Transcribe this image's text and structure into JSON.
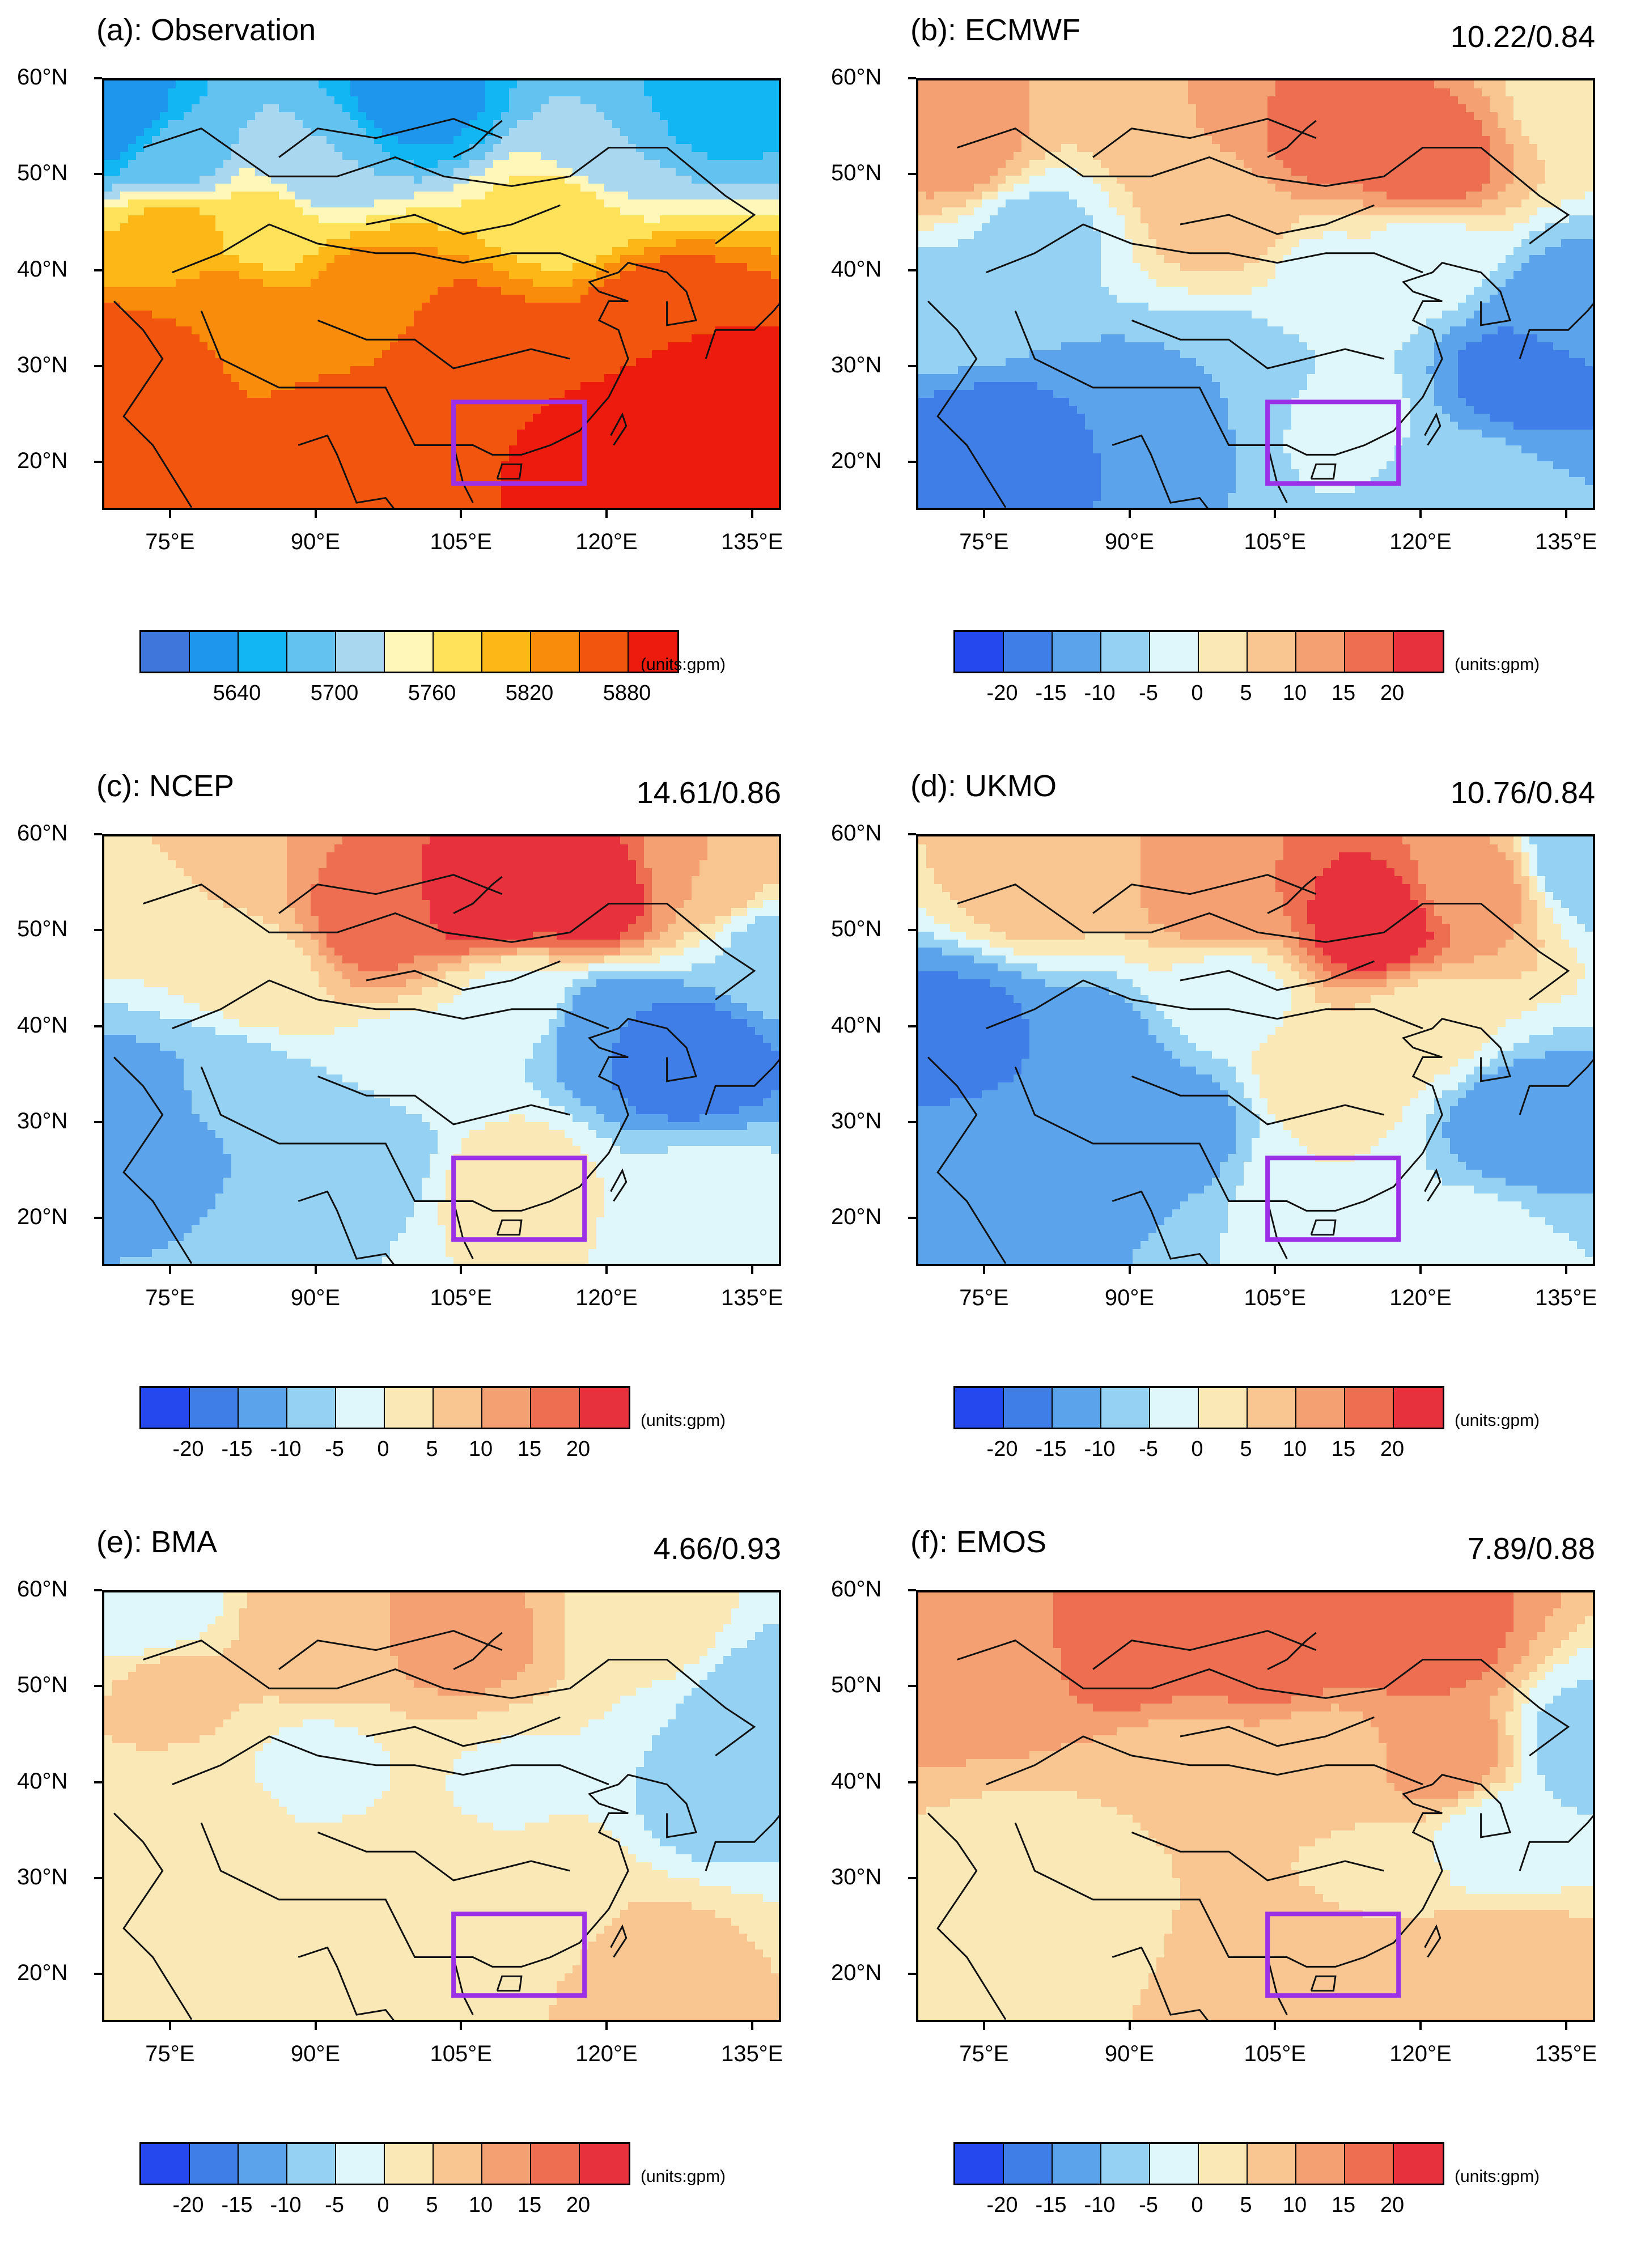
{
  "colors": {
    "obs": [
      "#3f76dc",
      "#1f96ee",
      "#12b6f2",
      "#63c2f0",
      "#a9d7ef",
      "#fff7ba",
      "#ffe25a",
      "#fdb717",
      "#f98c0b",
      "#f2560e",
      "#ec1b0e"
    ],
    "diff": [
      "#2448ee",
      "#3f7ee6",
      "#5ba3ea",
      "#94d1f2",
      "#dff6fb",
      "#fbe8b7",
      "#f9c692",
      "#f5a073",
      "#ee6e52",
      "#e7313c"
    ]
  },
  "chart_data": [
    {
      "type": "heatmap",
      "title": "(a): Observation",
      "stat": "",
      "xlim": [
        68,
        138
      ],
      "ylim": [
        15,
        60
      ],
      "xticks": [
        "75°E",
        "90°E",
        "105°E",
        "120°E",
        "135°E"
      ],
      "yticks": [
        "60°N",
        "50°N",
        "40°N",
        "30°N",
        "20°N"
      ],
      "colorbar_labels": [
        "5640",
        "5700",
        "5760",
        "5820",
        "5880"
      ],
      "units": "(units:gpm)",
      "palette": "obs",
      "region_box": {
        "lon": [
          104,
          117.5
        ],
        "lat": [
          18,
          26.5
        ]
      },
      "field": [
        {
          "lon": 69,
          "lat": 56,
          "v": 0.5
        },
        {
          "lon": 100,
          "lat": 58,
          "v": 1.0
        },
        {
          "lon": 130,
          "lat": 58,
          "v": 2.0
        },
        {
          "lon": 120,
          "lat": 53,
          "v": 3.5
        },
        {
          "lon": 90,
          "lat": 51,
          "v": 3.5
        },
        {
          "lon": 75,
          "lat": 52,
          "v": 3.0
        },
        {
          "lon": 85,
          "lat": 45,
          "v": 6.0
        },
        {
          "lon": 115,
          "lat": 46,
          "v": 6.0
        },
        {
          "lon": 75,
          "lat": 44,
          "v": 7.0
        },
        {
          "lon": 95,
          "lat": 38,
          "v": 8.0
        },
        {
          "lon": 80,
          "lat": 35,
          "v": 8.5
        },
        {
          "lon": 105,
          "lat": 33,
          "v": 9.0
        },
        {
          "lon": 125,
          "lat": 35,
          "v": 9.5
        },
        {
          "lon": 133,
          "lat": 24,
          "v": 10.5
        },
        {
          "lon": 120,
          "lat": 20,
          "v": 10.0
        },
        {
          "lon": 95,
          "lat": 22,
          "v": 9.0
        },
        {
          "lon": 75,
          "lat": 22,
          "v": 8.5
        },
        {
          "lon": 110,
          "lat": 29,
          "v": 9.5
        },
        {
          "lon": 70,
          "lat": 30,
          "v": 9.3
        }
      ]
    },
    {
      "type": "heatmap",
      "title": "(b): ECMWF",
      "stat": "10.22/0.84",
      "xlim": [
        68,
        138
      ],
      "ylim": [
        15,
        60
      ],
      "xticks": [
        "75°E",
        "90°E",
        "105°E",
        "120°E",
        "135°E"
      ],
      "yticks": [
        "60°N",
        "50°N",
        "40°N",
        "30°N",
        "20°N"
      ],
      "colorbar_labels": [
        "-20",
        "-15",
        "-10",
        "-5",
        "0",
        "5",
        "10",
        "15",
        "20"
      ],
      "units": "(units:gpm)",
      "palette": "diff",
      "region_box": {
        "lon": [
          104,
          117.5
        ],
        "lat": [
          18,
          26.5
        ]
      },
      "field": [
        {
          "lon": 110,
          "lat": 54,
          "v": 8.0
        },
        {
          "lon": 120,
          "lat": 51,
          "v": 8.3
        },
        {
          "lon": 95,
          "lat": 55,
          "v": 6.5
        },
        {
          "lon": 72,
          "lat": 53,
          "v": 7.0
        },
        {
          "lon": 100,
          "lat": 46,
          "v": 6.2
        },
        {
          "lon": 80,
          "lat": 44,
          "v": 3.2
        },
        {
          "lon": 110,
          "lat": 40,
          "v": 4.3
        },
        {
          "lon": 130,
          "lat": 29,
          "v": 1.0
        },
        {
          "lon": 135,
          "lat": 36,
          "v": 1.8
        },
        {
          "lon": 75,
          "lat": 22,
          "v": 0.8
        },
        {
          "lon": 90,
          "lat": 24,
          "v": 1.5
        },
        {
          "lon": 100,
          "lat": 29,
          "v": 2.5
        },
        {
          "lon": 112,
          "lat": 25,
          "v": 3.8
        },
        {
          "lon": 125,
          "lat": 18,
          "v": 3.0
        },
        {
          "lon": 137,
          "lat": 58,
          "v": 5.0
        },
        {
          "lon": 120,
          "lat": 42,
          "v": 4.0
        },
        {
          "lon": 72,
          "lat": 36,
          "v": 3.0
        }
      ]
    },
    {
      "type": "heatmap",
      "title": "(c): NCEP",
      "stat": "14.61/0.86",
      "xlim": [
        68,
        138
      ],
      "ylim": [
        15,
        60
      ],
      "xticks": [
        "75°E",
        "90°E",
        "105°E",
        "120°E",
        "135°E"
      ],
      "yticks": [
        "60°N",
        "50°N",
        "40°N",
        "30°N",
        "20°N"
      ],
      "colorbar_labels": [
        "-20",
        "-15",
        "-10",
        "-5",
        "0",
        "5",
        "10",
        "15",
        "20"
      ],
      "units": "(units:gpm)",
      "palette": "diff",
      "region_box": {
        "lon": [
          104,
          117.5
        ],
        "lat": [
          18,
          26.5
        ]
      },
      "field": [
        {
          "lon": 108,
          "lat": 53,
          "v": 9.5
        },
        {
          "lon": 118,
          "lat": 54,
          "v": 9.5
        },
        {
          "lon": 95,
          "lat": 51,
          "v": 8.0
        },
        {
          "lon": 75,
          "lat": 55,
          "v": 5.5
        },
        {
          "lon": 130,
          "lat": 56,
          "v": 6.5
        },
        {
          "lon": 85,
          "lat": 46,
          "v": 5.2
        },
        {
          "lon": 128,
          "lat": 37,
          "v": 0.5
        },
        {
          "lon": 120,
          "lat": 40,
          "v": 1.5
        },
        {
          "lon": 110,
          "lat": 43,
          "v": 4.2
        },
        {
          "lon": 80,
          "lat": 33,
          "v": 2.6
        },
        {
          "lon": 95,
          "lat": 27,
          "v": 2.8
        },
        {
          "lon": 110,
          "lat": 24,
          "v": 5.2
        },
        {
          "lon": 75,
          "lat": 25,
          "v": 2.5
        },
        {
          "lon": 130,
          "lat": 22,
          "v": 4.0
        },
        {
          "lon": 100,
          "lat": 35,
          "v": 3.6
        },
        {
          "lon": 72,
          "lat": 31,
          "v": 1.8
        },
        {
          "lon": 137,
          "lat": 48,
          "v": 3.2
        }
      ]
    },
    {
      "type": "heatmap",
      "title": "(d): UKMO",
      "stat": "10.76/0.84",
      "xlim": [
        68,
        138
      ],
      "ylim": [
        15,
        60
      ],
      "xticks": [
        "75°E",
        "90°E",
        "105°E",
        "120°E",
        "135°E"
      ],
      "yticks": [
        "60°N",
        "50°N",
        "40°N",
        "30°N",
        "20°N"
      ],
      "colorbar_labels": [
        "-20",
        "-15",
        "-10",
        "-5",
        "0",
        "5",
        "10",
        "15",
        "20"
      ],
      "units": "(units:gpm)",
      "palette": "diff",
      "region_box": {
        "lon": [
          104,
          117.5
        ],
        "lat": [
          18,
          26.5
        ]
      },
      "field": [
        {
          "lon": 115,
          "lat": 51,
          "v": 9.5
        },
        {
          "lon": 100,
          "lat": 53,
          "v": 7.5
        },
        {
          "lon": 125,
          "lat": 55,
          "v": 7.0
        },
        {
          "lon": 80,
          "lat": 55,
          "v": 6.0
        },
        {
          "lon": 72,
          "lat": 40,
          "v": 1.2
        },
        {
          "lon": 85,
          "lat": 37,
          "v": 1.5
        },
        {
          "lon": 95,
          "lat": 30,
          "v": 2.0
        },
        {
          "lon": 110,
          "lat": 35,
          "v": 5.3
        },
        {
          "lon": 130,
          "lat": 30,
          "v": 1.5
        },
        {
          "lon": 120,
          "lat": 40,
          "v": 4.8
        },
        {
          "lon": 110,
          "lat": 25,
          "v": 4.5
        },
        {
          "lon": 80,
          "lat": 24,
          "v": 2.2
        },
        {
          "lon": 125,
          "lat": 18,
          "v": 3.8
        },
        {
          "lon": 137,
          "lat": 58,
          "v": 2.5
        },
        {
          "lon": 100,
          "lat": 44,
          "v": 4.0
        }
      ]
    },
    {
      "type": "heatmap",
      "title": "(e): BMA",
      "stat": "4.66/0.93",
      "xlim": [
        68,
        138
      ],
      "ylim": [
        15,
        60
      ],
      "xticks": [
        "75°E",
        "90°E",
        "105°E",
        "120°E",
        "135°E"
      ],
      "yticks": [
        "60°N",
        "50°N",
        "40°N",
        "30°N",
        "20°N"
      ],
      "colorbar_labels": [
        "-20",
        "-15",
        "-10",
        "-5",
        "0",
        "5",
        "10",
        "15",
        "20"
      ],
      "units": "(units:gpm)",
      "palette": "diff",
      "region_box": {
        "lon": [
          104,
          117.5
        ],
        "lat": [
          18,
          26.5
        ]
      },
      "field": [
        {
          "lon": 105,
          "lat": 55,
          "v": 6.8
        },
        {
          "lon": 90,
          "lat": 55,
          "v": 6.4
        },
        {
          "lon": 75,
          "lat": 50,
          "v": 5.8
        },
        {
          "lon": 72,
          "lat": 58,
          "v": 3.5
        },
        {
          "lon": 125,
          "lat": 57,
          "v": 4.8
        },
        {
          "lon": 90,
          "lat": 42,
          "v": 4.3
        },
        {
          "lon": 110,
          "lat": 40,
          "v": 4.4
        },
        {
          "lon": 130,
          "lat": 38,
          "v": 3.2
        },
        {
          "lon": 137,
          "lat": 48,
          "v": 2.6
        },
        {
          "lon": 100,
          "lat": 28,
          "v": 5.5
        },
        {
          "lon": 80,
          "lat": 25,
          "v": 5.4
        },
        {
          "lon": 125,
          "lat": 22,
          "v": 5.8
        },
        {
          "lon": 115,
          "lat": 28,
          "v": 5.3
        },
        {
          "lon": 80,
          "lat": 36,
          "v": 4.6
        }
      ]
    },
    {
      "type": "heatmap",
      "title": "(f): EMOS",
      "stat": "7.89/0.88",
      "xlim": [
        68,
        138
      ],
      "ylim": [
        15,
        60
      ],
      "xticks": [
        "75°E",
        "90°E",
        "105°E",
        "120°E",
        "135°E"
      ],
      "yticks": [
        "60°N",
        "50°N",
        "40°N",
        "30°N",
        "20°N"
      ],
      "colorbar_labels": [
        "-20",
        "-15",
        "-10",
        "-5",
        "0",
        "5",
        "10",
        "15",
        "20"
      ],
      "units": "(units:gpm)",
      "palette": "diff",
      "region_box": {
        "lon": [
          104,
          117.5
        ],
        "lat": [
          18,
          26.5
        ]
      },
      "field": [
        {
          "lon": 105,
          "lat": 55,
          "v": 8.5
        },
        {
          "lon": 90,
          "lat": 54,
          "v": 8.0
        },
        {
          "lon": 120,
          "lat": 55,
          "v": 8.0
        },
        {
          "lon": 75,
          "lat": 52,
          "v": 7.0
        },
        {
          "lon": 122,
          "lat": 43,
          "v": 7.2
        },
        {
          "lon": 95,
          "lat": 40,
          "v": 5.5
        },
        {
          "lon": 110,
          "lat": 42,
          "v": 5.8
        },
        {
          "lon": 80,
          "lat": 30,
          "v": 4.8
        },
        {
          "lon": 128,
          "lat": 34,
          "v": 3.5
        },
        {
          "lon": 137,
          "lat": 44,
          "v": 3.0
        },
        {
          "lon": 100,
          "lat": 25,
          "v": 5.5
        },
        {
          "lon": 112,
          "lat": 22,
          "v": 6.5
        },
        {
          "lon": 128,
          "lat": 22,
          "v": 6.3
        },
        {
          "lon": 75,
          "lat": 20,
          "v": 5.5
        },
        {
          "lon": 115,
          "lat": 30,
          "v": 5.2
        }
      ]
    }
  ]
}
